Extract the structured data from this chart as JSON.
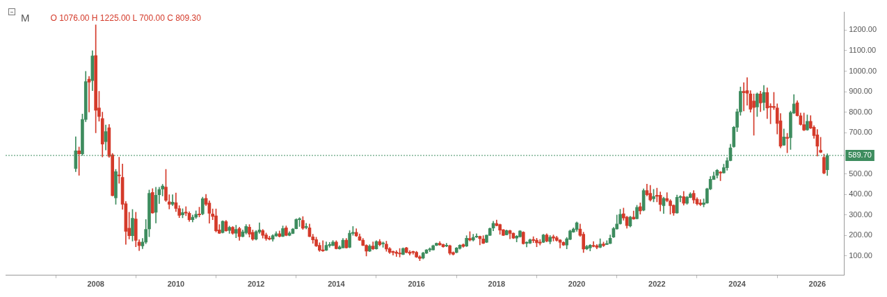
{
  "chart_data": {
    "type": "candlestick",
    "title": "M",
    "annotations": [
      "O 1076.00 H 1225.00 L 700.00 C 809.30"
    ],
    "xlim": [
      "2005-10",
      "2026-09"
    ],
    "xticks": [
      "2008",
      "2010",
      "2012",
      "2014",
      "2016",
      "2018",
      "2020",
      "2022",
      "2024",
      "2026"
    ],
    "ylim": [
      6,
      1287
    ],
    "yticks": [
      {
        "value": 100,
        "label": "100.00"
      },
      {
        "value": 200,
        "label": "200.00"
      },
      {
        "value": 300,
        "label": "300.00"
      },
      {
        "value": 400,
        "label": "400.00"
      },
      {
        "value": 500,
        "label": "500.00"
      },
      {
        "value": 700,
        "label": "700.00"
      },
      {
        "value": 800,
        "label": "800.00"
      },
      {
        "value": 900,
        "label": "900.00"
      },
      {
        "value": 1000,
        "label": "1000.00"
      },
      {
        "value": 1100,
        "label": "1100.00"
      },
      {
        "value": 1200,
        "label": "1200.00"
      }
    ],
    "grid": false,
    "legend": false,
    "ref_lines": [
      {
        "axis": "y",
        "value": 589.7,
        "label": "589.70",
        "color": "#3d8c5e",
        "line_style": "dotted"
      }
    ],
    "x": [
      "2007-07",
      "2007-08",
      "2007-09",
      "2007-10",
      "2007-11",
      "2007-12",
      "2008-01",
      "2008-02",
      "2008-03",
      "2008-04",
      "2008-05",
      "2008-06",
      "2008-07",
      "2008-08",
      "2008-09",
      "2008-10",
      "2008-11",
      "2008-12",
      "2009-01",
      "2009-02",
      "2009-03",
      "2009-04",
      "2009-05",
      "2009-06",
      "2009-07",
      "2009-08",
      "2009-09",
      "2009-10",
      "2009-11",
      "2009-12",
      "2010-01",
      "2010-02",
      "2010-03",
      "2010-04",
      "2010-05",
      "2010-06",
      "2010-07",
      "2010-08",
      "2010-09",
      "2010-10",
      "2010-11",
      "2010-12",
      "2011-01",
      "2011-02",
      "2011-03",
      "2011-04",
      "2011-05",
      "2011-06",
      "2011-07",
      "2011-08",
      "2011-09",
      "2011-10",
      "2011-11",
      "2011-12",
      "2012-01",
      "2012-02",
      "2012-03",
      "2012-04",
      "2012-05",
      "2012-06",
      "2012-07",
      "2012-08",
      "2012-09",
      "2012-10",
      "2012-11",
      "2012-12",
      "2013-01",
      "2013-02",
      "2013-03",
      "2013-04",
      "2013-05",
      "2013-06",
      "2013-07",
      "2013-08",
      "2013-09",
      "2013-10",
      "2013-11",
      "2013-12",
      "2014-01",
      "2014-02",
      "2014-03",
      "2014-04",
      "2014-05",
      "2014-06",
      "2014-07",
      "2014-08",
      "2014-09",
      "2014-10",
      "2014-11",
      "2014-12",
      "2015-01",
      "2015-02",
      "2015-03",
      "2015-04",
      "2015-05",
      "2015-06",
      "2015-07",
      "2015-08",
      "2015-09",
      "2015-10",
      "2015-11",
      "2015-12",
      "2016-01",
      "2016-02",
      "2016-03",
      "2016-04",
      "2016-05",
      "2016-06",
      "2016-07",
      "2016-08",
      "2016-09",
      "2016-10",
      "2016-11",
      "2016-12",
      "2017-01",
      "2017-02",
      "2017-03",
      "2017-04",
      "2017-05",
      "2017-06",
      "2017-07",
      "2017-08",
      "2017-09",
      "2017-10",
      "2017-11",
      "2017-12",
      "2018-01",
      "2018-02",
      "2018-03",
      "2018-04",
      "2018-05",
      "2018-06",
      "2018-07",
      "2018-08",
      "2018-09",
      "2018-10",
      "2018-11",
      "2018-12",
      "2019-01",
      "2019-02",
      "2019-03",
      "2019-04",
      "2019-05",
      "2019-06",
      "2019-07",
      "2019-08",
      "2019-09",
      "2019-10",
      "2019-11",
      "2019-12",
      "2020-01",
      "2020-02",
      "2020-03",
      "2020-04",
      "2020-05",
      "2020-06",
      "2020-07",
      "2020-08",
      "2020-09",
      "2020-10",
      "2020-11",
      "2020-12",
      "2021-01",
      "2021-02",
      "2021-03",
      "2021-04",
      "2021-05",
      "2021-06",
      "2021-07",
      "2021-08",
      "2021-09",
      "2021-10",
      "2021-11",
      "2021-12",
      "2022-01",
      "2022-02",
      "2022-03",
      "2022-04",
      "2022-05",
      "2022-06",
      "2022-07",
      "2022-08",
      "2022-09",
      "2022-10",
      "2022-11",
      "2022-12",
      "2023-01",
      "2023-02",
      "2023-03",
      "2023-04",
      "2023-05",
      "2023-06",
      "2023-07",
      "2023-08",
      "2023-09",
      "2023-10",
      "2023-11",
      "2023-12",
      "2024-01",
      "2024-02",
      "2024-03",
      "2024-04",
      "2024-05",
      "2024-06",
      "2024-07",
      "2024-08",
      "2024-09",
      "2024-10",
      "2024-11",
      "2024-12",
      "2025-01",
      "2025-02",
      "2025-03",
      "2025-04",
      "2025-05",
      "2025-06",
      "2025-07",
      "2025-08",
      "2025-09",
      "2025-10",
      "2025-11",
      "2025-12",
      "2026-01",
      "2026-02",
      "2026-03",
      "2026-04"
    ],
    "ohlc": [
      [
        526,
        681,
        511,
        612
      ],
      [
        612,
        631,
        493,
        598
      ],
      [
        598,
        791,
        590,
        765
      ],
      [
        765,
        999,
        754,
        949
      ],
      [
        961,
        975,
        801,
        946
      ],
      [
        954,
        1100,
        905,
        1074
      ],
      [
        1076,
        1225,
        700,
        809.3
      ],
      [
        821,
        902,
        756,
        779
      ],
      [
        769,
        801,
        582,
        645
      ],
      [
        657,
        738,
        616,
        706
      ],
      [
        725,
        741,
        580,
        586
      ],
      [
        593,
        600,
        392,
        394
      ],
      [
        383,
        522,
        352,
        511
      ],
      [
        492,
        581,
        454,
        490
      ],
      [
        483,
        548,
        327,
        352
      ],
      [
        355,
        366,
        157,
        220
      ],
      [
        236,
        313,
        183,
        199
      ],
      [
        199,
        327,
        173,
        284
      ],
      [
        280,
        313,
        145,
        176
      ],
      [
        168,
        180,
        126,
        151
      ],
      [
        149,
        186,
        136,
        168
      ],
      [
        168,
        278,
        160,
        230
      ],
      [
        232,
        421,
        194,
        405
      ],
      [
        410,
        428,
        308,
        310
      ],
      [
        313,
        435,
        261,
        396
      ],
      [
        398,
        435,
        355,
        424
      ],
      [
        426,
        449,
        392,
        441
      ],
      [
        436,
        522,
        365,
        371
      ],
      [
        364,
        399,
        329,
        352
      ],
      [
        352,
        399,
        345,
        362
      ],
      [
        360,
        407,
        316,
        332
      ],
      [
        331,
        345,
        287,
        298
      ],
      [
        300,
        330,
        286,
        312
      ],
      [
        312,
        340,
        296,
        309
      ],
      [
        308,
        316,
        268,
        277
      ],
      [
        277,
        300,
        266,
        289
      ],
      [
        289,
        320,
        283,
        303
      ],
      [
        303,
        338,
        290,
        300
      ],
      [
        305,
        387,
        300,
        379
      ],
      [
        381,
        400,
        345,
        352
      ],
      [
        358,
        369,
        260,
        308
      ],
      [
        305,
        329,
        277,
        293
      ],
      [
        296,
        329,
        217,
        223
      ],
      [
        227,
        253,
        209,
        211
      ],
      [
        214,
        272,
        212,
        269
      ],
      [
        268,
        274,
        220,
        223
      ],
      [
        224,
        246,
        210,
        240
      ],
      [
        240,
        244,
        206,
        211
      ],
      [
        211,
        250,
        189,
        230
      ],
      [
        234,
        241,
        176,
        195
      ],
      [
        195,
        227,
        193,
        218
      ],
      [
        213,
        253,
        207,
        244
      ],
      [
        241,
        253,
        192,
        207
      ],
      [
        215,
        227,
        176,
        182
      ],
      [
        182,
        225,
        178,
        219
      ],
      [
        217,
        262,
        210,
        227
      ],
      [
        224,
        230,
        187,
        201
      ],
      [
        203,
        212,
        176,
        185
      ],
      [
        187,
        197,
        178,
        182
      ],
      [
        182,
        204,
        172,
        199
      ],
      [
        198,
        219,
        195,
        209
      ],
      [
        209,
        222,
        192,
        196
      ],
      [
        196,
        247,
        194,
        234
      ],
      [
        237,
        247,
        198,
        201
      ],
      [
        201,
        219,
        198,
        212
      ],
      [
        210,
        235,
        208,
        231
      ],
      [
        233,
        282,
        232,
        278
      ],
      [
        277,
        287,
        244,
        279
      ],
      [
        274,
        292,
        229,
        235
      ],
      [
        239,
        259,
        232,
        240
      ],
      [
        237,
        256,
        194,
        195
      ],
      [
        193,
        206,
        162,
        179
      ],
      [
        180,
        192,
        146,
        149
      ],
      [
        152,
        165,
        122,
        128
      ],
      [
        130,
        175,
        122,
        125
      ],
      [
        128,
        169,
        126,
        152
      ],
      [
        151,
        166,
        142,
        152
      ],
      [
        151,
        176,
        150,
        168
      ],
      [
        168,
        175,
        134,
        136
      ],
      [
        135,
        150,
        133,
        144
      ],
      [
        140,
        186,
        139,
        177
      ],
      [
        177,
        186,
        138,
        140
      ],
      [
        142,
        225,
        140,
        211
      ],
      [
        210,
        244,
        201,
        214
      ],
      [
        215,
        233,
        195,
        198
      ],
      [
        194,
        208,
        175,
        177
      ],
      [
        177,
        186,
        150,
        152
      ],
      [
        152,
        155,
        100,
        124
      ],
      [
        124,
        155,
        121,
        149
      ],
      [
        149,
        169,
        131,
        135
      ],
      [
        135,
        175,
        133,
        171
      ],
      [
        171,
        181,
        149,
        155
      ],
      [
        159,
        169,
        142,
        160
      ],
      [
        158,
        172,
        123,
        134
      ],
      [
        136,
        142,
        112,
        118
      ],
      [
        119,
        125,
        104,
        117
      ],
      [
        119,
        127,
        98,
        113
      ],
      [
        114,
        137,
        95,
        110
      ],
      [
        108,
        140,
        106,
        137
      ],
      [
        140,
        143,
        115,
        117
      ],
      [
        119,
        127,
        104,
        113
      ],
      [
        119,
        124,
        109,
        117
      ],
      [
        118,
        123,
        93,
        95
      ],
      [
        96,
        102,
        77,
        88
      ],
      [
        90,
        119,
        86,
        115
      ],
      [
        114,
        132,
        112,
        130
      ],
      [
        130,
        140,
        121,
        131
      ],
      [
        130,
        154,
        129,
        150
      ],
      [
        152,
        164,
        150,
        162
      ],
      [
        162,
        171,
        152,
        154
      ],
      [
        156,
        159,
        142,
        145
      ],
      [
        148,
        162,
        145,
        149
      ],
      [
        150,
        154,
        106,
        114
      ],
      [
        117,
        121,
        104,
        109
      ],
      [
        117,
        142,
        115,
        139
      ],
      [
        137,
        155,
        133,
        153
      ],
      [
        155,
        160,
        142,
        147
      ],
      [
        148,
        199,
        146,
        187
      ],
      [
        186,
        219,
        173,
        178
      ],
      [
        178,
        206,
        173,
        191
      ],
      [
        192,
        209,
        190,
        193
      ],
      [
        196,
        198,
        154,
        185
      ],
      [
        183,
        199,
        160,
        162
      ],
      [
        167,
        203,
        165,
        202
      ],
      [
        201,
        237,
        199,
        234
      ],
      [
        236,
        269,
        223,
        259
      ],
      [
        258,
        275,
        246,
        248
      ],
      [
        253,
        256,
        206,
        226
      ],
      [
        228,
        230,
        199,
        201
      ],
      [
        203,
        227,
        202,
        224
      ],
      [
        224,
        226,
        184,
        210
      ],
      [
        211,
        213,
        185,
        187
      ],
      [
        187,
        200,
        169,
        197
      ],
      [
        194,
        225,
        191,
        222
      ],
      [
        216,
        219,
        158,
        160
      ],
      [
        162,
        170,
        144,
        166
      ],
      [
        163,
        183,
        160,
        179
      ],
      [
        181,
        194,
        165,
        175
      ],
      [
        177,
        187,
        145,
        164
      ],
      [
        164,
        181,
        153,
        163
      ],
      [
        167,
        206,
        165,
        203
      ],
      [
        203,
        209,
        169,
        173
      ],
      [
        170,
        200,
        159,
        192
      ],
      [
        194,
        203,
        173,
        187
      ],
      [
        189,
        197,
        172,
        176
      ],
      [
        178,
        181,
        139,
        167
      ],
      [
        166,
        170,
        151,
        153
      ],
      [
        153,
        191,
        135,
        184
      ],
      [
        181,
        227,
        179,
        222
      ],
      [
        217,
        237,
        215,
        231
      ],
      [
        229,
        266,
        220,
        262
      ],
      [
        231,
        256,
        196,
        201
      ],
      [
        206,
        216,
        117,
        134
      ],
      [
        135,
        153,
        131,
        147
      ],
      [
        140,
        156,
        125,
        153
      ],
      [
        152,
        171,
        144,
        147
      ],
      [
        150,
        156,
        135,
        142
      ],
      [
        142,
        184,
        140,
        158
      ],
      [
        159,
        168,
        146,
        151
      ],
      [
        156,
        175,
        155,
        158
      ],
      [
        161,
        203,
        160,
        187
      ],
      [
        192,
        240,
        190,
        234
      ],
      [
        232,
        300,
        230,
        256
      ],
      [
        257,
        328,
        255,
        303
      ],
      [
        306,
        334,
        274,
        285
      ],
      [
        290,
        294,
        235,
        248
      ],
      [
        246,
        294,
        241,
        290
      ],
      [
        290,
        319,
        278,
        280
      ],
      [
        282,
        347,
        280,
        337
      ],
      [
        340,
        359,
        304,
        320
      ],
      [
        323,
        427,
        320,
        419
      ],
      [
        419,
        450,
        392,
        398
      ],
      [
        405,
        444,
        367,
        373
      ],
      [
        379,
        425,
        364,
        390
      ],
      [
        393,
        431,
        364,
        391
      ],
      [
        396,
        412,
        319,
        351
      ],
      [
        345,
        387,
        307,
        381
      ],
      [
        380,
        409,
        364,
        370
      ],
      [
        368,
        375,
        304,
        345
      ],
      [
        347,
        350,
        298,
        310
      ],
      [
        310,
        397,
        308,
        386
      ],
      [
        385,
        394,
        364,
        390
      ],
      [
        389,
        415,
        348,
        357
      ],
      [
        357,
        391,
        352,
        387
      ],
      [
        385,
        409,
        383,
        402
      ],
      [
        405,
        419,
        357,
        373
      ],
      [
        377,
        384,
        348,
        354
      ],
      [
        358,
        375,
        345,
        351
      ],
      [
        351,
        378,
        339,
        359
      ],
      [
        358,
        431,
        356,
        427
      ],
      [
        426,
        487,
        423,
        474
      ],
      [
        473,
        509,
        472,
        490
      ],
      [
        493,
        522,
        479,
        518
      ],
      [
        509,
        512,
        467,
        504
      ],
      [
        505,
        547,
        503,
        530
      ],
      [
        530,
        579,
        517,
        564
      ],
      [
        565,
        644,
        563,
        627
      ],
      [
        632,
        731,
        629,
        727
      ],
      [
        727,
        816,
        706,
        802
      ],
      [
        802,
        923,
        785,
        902
      ],
      [
        902,
        944,
        806,
        895
      ],
      [
        905,
        969,
        834,
        892
      ],
      [
        889,
        905,
        800,
        815
      ],
      [
        855,
        889,
        688,
        823
      ],
      [
        826,
        894,
        779,
        889
      ],
      [
        889,
        903,
        803,
        845
      ],
      [
        848,
        931,
        810,
        897
      ],
      [
        896,
        919,
        769,
        821
      ],
      [
        826,
        842,
        744,
        824
      ],
      [
        827,
        897,
        813,
        823
      ],
      [
        821,
        841,
        694,
        745
      ],
      [
        758,
        794,
        626,
        635
      ],
      [
        640,
        719,
        638,
        680
      ],
      [
        678,
        698,
        603,
        673
      ],
      [
        676,
        806,
        619,
        799
      ],
      [
        796,
        886,
        793,
        840
      ],
      [
        846,
        856,
        781,
        783
      ],
      [
        783,
        796,
        737,
        740
      ],
      [
        740,
        796,
        710,
        713
      ],
      [
        714,
        787,
        712,
        756
      ],
      [
        756,
        784,
        720,
        723
      ],
      [
        727,
        735,
        673,
        686
      ],
      [
        690,
        716,
        587,
        635
      ],
      [
        615,
        678,
        603,
        605
      ],
      [
        580,
        596,
        500,
        504
      ],
      [
        520,
        598,
        492,
        589.7
      ]
    ],
    "colors": [
      "#3d8c5e",
      "#d43a2a",
      "#3d8c5e",
      "#3d8c5e",
      "#d43a2a",
      "#3d8c5e",
      "#d43a2a",
      "#d43a2a",
      "#d43a2a",
      "#3d8c5e",
      "#d43a2a",
      "#d43a2a",
      "#3d8c5e",
      "#d43a2a",
      "#d43a2a",
      "#d43a2a",
      "#d43a2a",
      "#3d8c5e",
      "#d43a2a",
      "#d43a2a",
      "#3d8c5e",
      "#3d8c5e",
      "#3d8c5e",
      "#d43a2a",
      "#3d8c5e",
      "#3d8c5e",
      "#3d8c5e",
      "#d43a2a",
      "#d43a2a",
      "#3d8c5e",
      "#d43a2a",
      "#d43a2a",
      "#3d8c5e",
      "#d43a2a",
      "#d43a2a",
      "#3d8c5e",
      "#3d8c5e",
      "#d43a2a",
      "#3d8c5e",
      "#d43a2a",
      "#d43a2a",
      "#d43a2a",
      "#d43a2a",
      "#d43a2a",
      "#3d8c5e",
      "#d43a2a",
      "#3d8c5e",
      "#d43a2a",
      "#3d8c5e",
      "#d43a2a",
      "#3d8c5e",
      "#3d8c5e",
      "#d43a2a",
      "#d43a2a",
      "#3d8c5e",
      "#3d8c5e",
      "#d43a2a",
      "#d43a2a",
      "#d43a2a",
      "#3d8c5e",
      "#3d8c5e",
      "#d43a2a",
      "#3d8c5e",
      "#d43a2a",
      "#3d8c5e",
      "#3d8c5e",
      "#3d8c5e",
      "#3d8c5e",
      "#d43a2a",
      "#3d8c5e",
      "#d43a2a",
      "#d43a2a",
      "#d43a2a",
      "#d43a2a",
      "#d43a2a",
      "#3d8c5e",
      "#3d8c5e",
      "#3d8c5e",
      "#d43a2a",
      "#3d8c5e",
      "#3d8c5e",
      "#d43a2a",
      "#3d8c5e",
      "#3d8c5e",
      "#d43a2a",
      "#d43a2a",
      "#d43a2a",
      "#d43a2a",
      "#3d8c5e",
      "#d43a2a",
      "#3d8c5e",
      "#d43a2a",
      "#3d8c5e",
      "#d43a2a",
      "#d43a2a",
      "#d43a2a",
      "#d43a2a",
      "#d43a2a",
      "#3d8c5e",
      "#d43a2a",
      "#d43a2a",
      "#d43a2a",
      "#d43a2a",
      "#d43a2a",
      "#3d8c5e",
      "#3d8c5e",
      "#3d8c5e",
      "#3d8c5e",
      "#3d8c5e",
      "#d43a2a",
      "#d43a2a",
      "#3d8c5e",
      "#d43a2a",
      "#d43a2a",
      "#3d8c5e",
      "#3d8c5e",
      "#d43a2a",
      "#3d8c5e",
      "#d43a2a",
      "#3d8c5e",
      "#3d8c5e",
      "#d43a2a",
      "#d43a2a",
      "#3d8c5e",
      "#3d8c5e",
      "#3d8c5e",
      "#d43a2a",
      "#d43a2a",
      "#d43a2a",
      "#3d8c5e",
      "#d43a2a",
      "#d43a2a",
      "#3d8c5e",
      "#3d8c5e",
      "#d43a2a",
      "#3d8c5e",
      "#3d8c5e",
      "#d43a2a",
      "#d43a2a",
      "#d43a2a",
      "#3d8c5e",
      "#d43a2a",
      "#3d8c5e",
      "#d43a2a",
      "#d43a2a",
      "#d43a2a",
      "#d43a2a",
      "#3d8c5e",
      "#3d8c5e",
      "#3d8c5e",
      "#3d8c5e",
      "#d43a2a",
      "#d43a2a",
      "#3d8c5e",
      "#3d8c5e",
      "#d43a2a",
      "#d43a2a",
      "#3d8c5e",
      "#d43a2a",
      "#3d8c5e",
      "#3d8c5e",
      "#3d8c5e",
      "#3d8c5e",
      "#3d8c5e",
      "#d43a2a",
      "#d43a2a",
      "#3d8c5e",
      "#d43a2a",
      "#3d8c5e",
      "#d43a2a",
      "#3d8c5e",
      "#d43a2a",
      "#d43a2a",
      "#3d8c5e",
      "#d43a2a",
      "#d43a2a",
      "#3d8c5e",
      "#d43a2a",
      "#d43a2a",
      "#d43a2a",
      "#3d8c5e",
      "#3d8c5e",
      "#d43a2a",
      "#3d8c5e",
      "#3d8c5e",
      "#d43a2a",
      "#d43a2a",
      "#d43a2a",
      "#3d8c5e",
      "#3d8c5e",
      "#3d8c5e",
      "#3d8c5e",
      "#3d8c5e",
      "#d43a2a",
      "#3d8c5e",
      "#3d8c5e",
      "#3d8c5e",
      "#3d8c5e",
      "#3d8c5e",
      "#3d8c5e",
      "#d43a2a",
      "#d43a2a",
      "#d43a2a",
      "#d43a2a",
      "#3d8c5e",
      "#d43a2a",
      "#3d8c5e",
      "#d43a2a",
      "#d43a2a",
      "#d43a2a",
      "#d43a2a",
      "#d43a2a",
      "#3d8c5e",
      "#d43a2a",
      "#3d8c5e",
      "#3d8c5e",
      "#d43a2a",
      "#d43a2a",
      "#d43a2a",
      "#3d8c5e",
      "#d43a2a",
      "#d43a2a",
      "#d43a2a",
      "#d43a2a",
      "#d43a2a",
      "#3d8c5e"
    ]
  }
}
